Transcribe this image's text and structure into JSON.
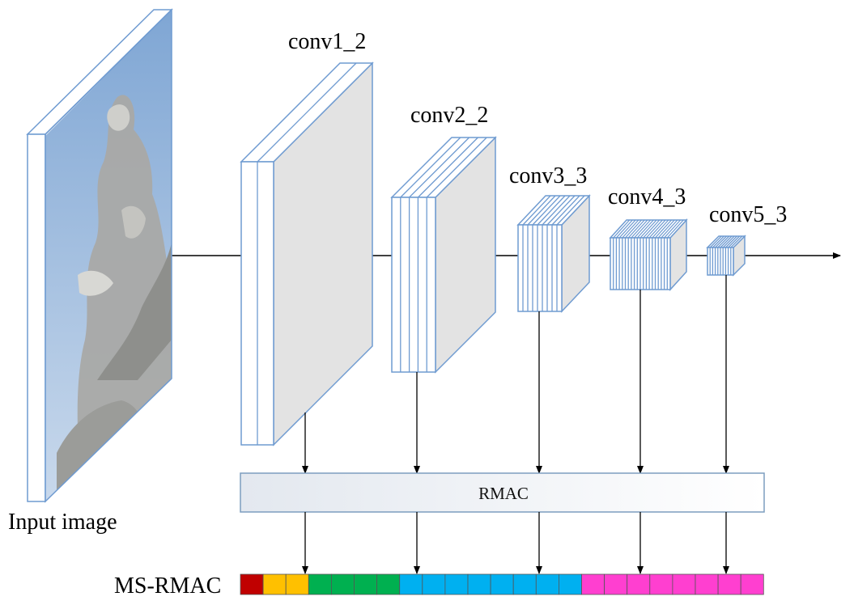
{
  "input": {
    "label": "Input image"
  },
  "layers": [
    {
      "name": "conv1_2"
    },
    {
      "name": "conv2_2"
    },
    {
      "name": "conv3_3"
    },
    {
      "name": "conv4_3"
    },
    {
      "name": "conv5_3"
    }
  ],
  "pooling": {
    "label": "RMAC"
  },
  "descriptor": {
    "label": "MS-RMAC",
    "segments": [
      {
        "color": "#c00000",
        "count": 1
      },
      {
        "color": "#ffc000",
        "count": 2
      },
      {
        "color": "#00b050",
        "count": 4
      },
      {
        "color": "#00b0f0",
        "count": 8
      },
      {
        "color": "#ff3fd0",
        "count": 8
      }
    ]
  },
  "colors": {
    "block_edge": "#6f9bd1",
    "block_face": "#e3e3e3",
    "block_front": "#ffffff",
    "rmac_fill_left": "#e3e8ef",
    "rmac_fill_right": "#ffffff",
    "rmac_border": "#7d9dbf",
    "arrow": "#000000"
  }
}
